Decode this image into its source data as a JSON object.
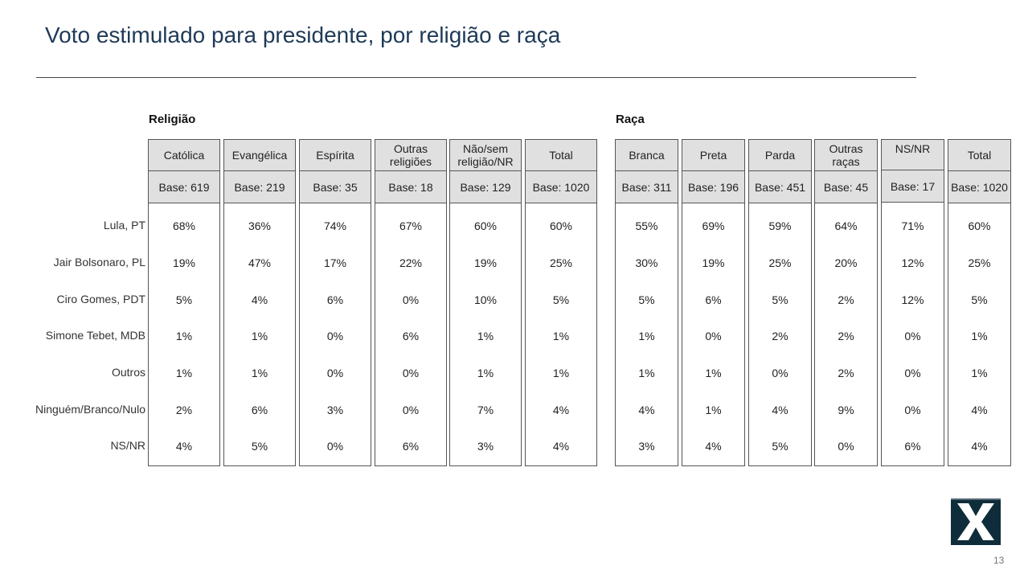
{
  "title": "Voto estimulado para presidente, por religião e raça",
  "page_number": "13",
  "logo_icon": "x-logo-icon",
  "colors": {
    "title": "#1f3a57",
    "header_bg": "#e0e0e0",
    "logo_bg": "#0f2c3a"
  },
  "row_labels": [
    "Lula, PT",
    "Jair Bolsonaro, PL",
    "Ciro Gomes, PDT",
    "Simone Tebet, MDB",
    "Outros",
    "Ninguém/Branco/Nulo",
    "NS/NR"
  ],
  "religiao": {
    "label": "Religião",
    "columns": [
      {
        "header": "Católica",
        "base": "Base: 619",
        "values": [
          "68%",
          "19%",
          "5%",
          "1%",
          "1%",
          "2%",
          "4%"
        ]
      },
      {
        "header": "Evangélica",
        "base": "Base: 219",
        "values": [
          "36%",
          "47%",
          "4%",
          "1%",
          "1%",
          "6%",
          "5%"
        ]
      },
      {
        "header": "Espírita",
        "base": "Base: 35",
        "values": [
          "74%",
          "17%",
          "6%",
          "0%",
          "0%",
          "3%",
          "0%"
        ]
      },
      {
        "header": "Outras religiões",
        "base": "Base: 18",
        "values": [
          "67%",
          "22%",
          "0%",
          "6%",
          "0%",
          "0%",
          "6%"
        ]
      },
      {
        "header": "Não/sem religião/NR",
        "base": "Base: 129",
        "values": [
          "60%",
          "19%",
          "10%",
          "1%",
          "1%",
          "7%",
          "3%"
        ]
      },
      {
        "header": "Total",
        "base": "Base: 1020",
        "values": [
          "60%",
          "25%",
          "5%",
          "1%",
          "1%",
          "4%",
          "4%"
        ]
      }
    ]
  },
  "raca": {
    "label": "Raça",
    "columns": [
      {
        "header": "Branca",
        "base": "Base: 311",
        "values": [
          "55%",
          "30%",
          "5%",
          "1%",
          "1%",
          "4%",
          "3%"
        ]
      },
      {
        "header": "Preta",
        "base": "Base: 196",
        "values": [
          "69%",
          "19%",
          "6%",
          "0%",
          "1%",
          "1%",
          "4%"
        ]
      },
      {
        "header": "Parda",
        "base": "Base: 451",
        "values": [
          "59%",
          "25%",
          "5%",
          "2%",
          "0%",
          "4%",
          "5%"
        ]
      },
      {
        "header": "Outras raças",
        "base": "Base: 45",
        "values": [
          "64%",
          "20%",
          "2%",
          "2%",
          "2%",
          "9%",
          "0%"
        ]
      },
      {
        "header": "NS/NR",
        "base": "Base: 17",
        "values": [
          "71%",
          "12%",
          "12%",
          "0%",
          "0%",
          "0%",
          "6%"
        ]
      },
      {
        "header": "Total",
        "base": "Base: 1020",
        "values": [
          "60%",
          "25%",
          "5%",
          "1%",
          "1%",
          "4%",
          "4%"
        ]
      }
    ]
  }
}
